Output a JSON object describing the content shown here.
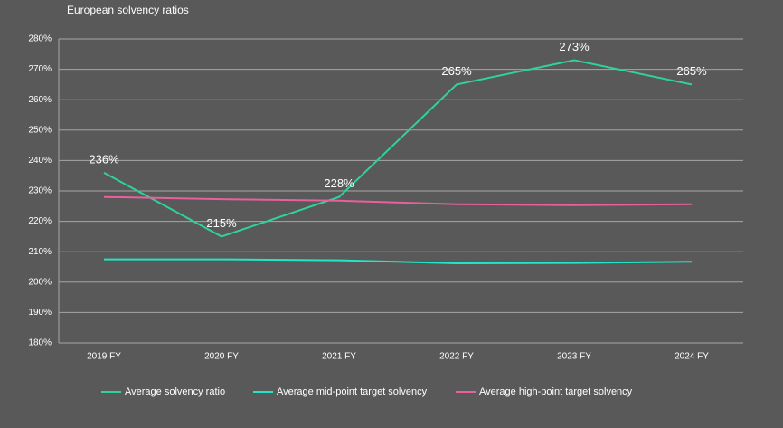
{
  "chart_data": {
    "type": "line",
    "title": "European solvency ratios",
    "categories": [
      "2019 FY",
      "2020 FY",
      "2021 FY",
      "2022 FY",
      "2023 FY",
      "2024 FY"
    ],
    "series": [
      {
        "name": "Average solvency ratio",
        "color": "#2fd39a",
        "values": [
          236,
          215,
          228,
          265,
          273,
          265
        ],
        "value_labels": [
          "236%",
          "215%",
          "228%",
          "265%",
          "273%",
          "265%"
        ]
      },
      {
        "name": "Average mid-point target solvency",
        "color": "#1ee8c8",
        "values": [
          207.5,
          207.5,
          207.2,
          206.2,
          206.3,
          206.7
        ]
      },
      {
        "name": "Average high-point target solvency",
        "color": "#e8609c",
        "values": [
          228,
          227.3,
          226.8,
          225.6,
          225.3,
          225.6
        ]
      }
    ],
    "ylim": [
      180,
      280
    ],
    "yticks": [
      {
        "value": 180,
        "label": "180%"
      },
      {
        "value": 190,
        "label": "190%"
      },
      {
        "value": 200,
        "label": "200%"
      },
      {
        "value": 210,
        "label": "210%"
      },
      {
        "value": 220,
        "label": "220%"
      },
      {
        "value": 230,
        "label": "230%"
      },
      {
        "value": 240,
        "label": "240%"
      },
      {
        "value": 250,
        "label": "250%"
      },
      {
        "value": 260,
        "label": "260%"
      },
      {
        "value": 270,
        "label": "270%"
      },
      {
        "value": 280,
        "label": "280%"
      }
    ],
    "grid": true,
    "legend": "bottom"
  }
}
